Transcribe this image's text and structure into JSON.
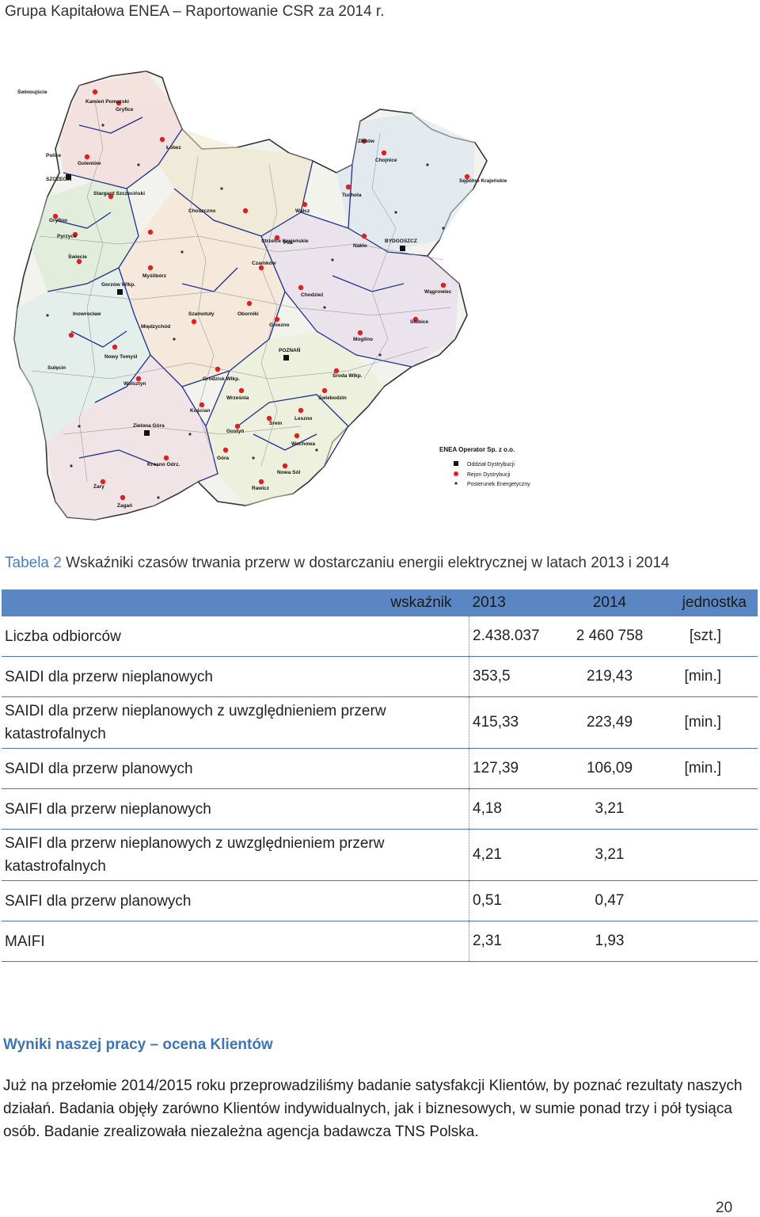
{
  "header": {
    "title": "Grupa Kapitałowa ENEA – Raportowanie CSR za 2014 r."
  },
  "map": {
    "legend": {
      "title": "ENEA Operator Sp. z o.o.",
      "items": [
        {
          "label": "Oddział Dystrybucji",
          "color": "#111111",
          "shape": "square"
        },
        {
          "label": "Rejon Dystrybucji",
          "color": "#e02020",
          "shape": "circle"
        },
        {
          "label": "Posterunek Energetyczny",
          "color": "#333333",
          "shape": "dot"
        }
      ]
    },
    "branches": [
      "SZCZECIN",
      "POZNAŃ",
      "BYDGOSZCZ",
      "Gorzów Wlkp.",
      "Zielona Góra"
    ],
    "places": [
      "Świnoujście",
      "Kamień Pomorski",
      "Gryfice",
      "Police",
      "Goleniów",
      "Łobez",
      "Stargard Szczeciński",
      "Gryfino",
      "Pyrzyce",
      "Choszczno",
      "Wałcz",
      "Złotów",
      "Chojnice",
      "Tuchola",
      "Sępólno Krajeńskie",
      "Świecie",
      "Myślibórz",
      "Strzelce Krajeńskie",
      "Piła",
      "Nakło",
      "Czarnków",
      "Chodzież",
      "Wągrowiec",
      "Inowrocław",
      "Międzychód",
      "Szamotuły",
      "Oborniki",
      "Gniezno",
      "Mogilno",
      "Słubice",
      "Sulęcin",
      "Nowy Tomyśl",
      "Grodzisk Wlkp.",
      "Września",
      "Środa Wlkp.",
      "Świebodzin",
      "Wolsztyn",
      "Kościan",
      "Śrem",
      "Leszno",
      "Gostyń",
      "Wschowa",
      "Góra",
      "Rawicz",
      "Nowa Sól",
      "Krosno Odrz.",
      "Żary",
      "Żagań"
    ]
  },
  "table": {
    "caption_prefix": "Tabela 2",
    "caption_text": " Wskaźniki czasów trwania przerw w dostarczaniu energii elektrycznej w latach 2013 i 2014",
    "headers": {
      "name": "wskaźnik",
      "y2013": "2013",
      "y2014": "2014",
      "unit": "jednostka"
    },
    "rows": [
      {
        "name": "Liczba odbiorców",
        "y2013": "2.438.037",
        "y2014": "2 460 758",
        "unit": "[szt.]"
      },
      {
        "name": "SAIDI dla przerw nieplanowych",
        "y2013": "353,5",
        "y2014": "219,43",
        "unit": "[min.]"
      },
      {
        "name": "SAIDI dla przerw nieplanowych z uwzględnieniem przerw katastrofalnych",
        "y2013": "415,33",
        "y2014": "223,49",
        "unit": "[min.]"
      },
      {
        "name": "SAIDI dla przerw planowych",
        "y2013": "127,39",
        "y2014": "106,09",
        "unit": "[min.]"
      },
      {
        "name": "SAIFI dla przerw nieplanowych",
        "y2013": "4,18",
        "y2014": "3,21",
        "unit": ""
      },
      {
        "name": "SAIFI dla przerw nieplanowych z uwzględnieniem przerw katastrofalnych",
        "y2013": "4,21",
        "y2014": "3,21",
        "unit": ""
      },
      {
        "name": "SAIFI dla przerw planowych",
        "y2013": "0,51",
        "y2014": "0,47",
        "unit": ""
      },
      {
        "name": "MAIFI",
        "y2013": "2,31",
        "y2014": "1,93",
        "unit": ""
      }
    ]
  },
  "section": {
    "title": "Wyniki naszej pracy – ocena Klientów",
    "paragraph": "Już na przełomie 2014/2015 roku przeprowadziliśmy badanie satysfakcji Klientów, by poznać rezultaty naszych działań. Badania objęły zarówno Klientów indywidualnych, jak i biznesowych, w sumie ponad trzy i pół tysiąca osób. Badanie zrealizowała niezależna agencja badawcza TNS Polska."
  },
  "page_number": "20"
}
